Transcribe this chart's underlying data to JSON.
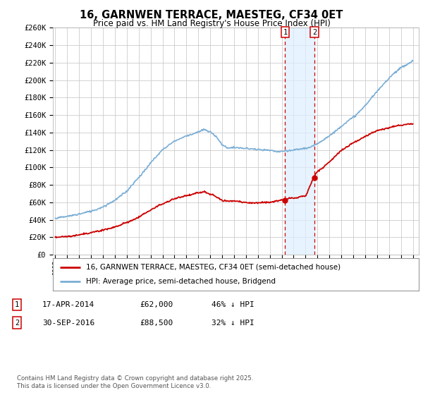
{
  "title": "16, GARNWEN TERRACE, MAESTEG, CF34 0ET",
  "subtitle": "Price paid vs. HM Land Registry's House Price Index (HPI)",
  "legend_line1": "16, GARNWEN TERRACE, MAESTEG, CF34 0ET (semi-detached house)",
  "legend_line2": "HPI: Average price, semi-detached house, Bridgend",
  "footer": "Contains HM Land Registry data © Crown copyright and database right 2025.\nThis data is licensed under the Open Government Licence v3.0.",
  "transaction1_date": "17-APR-2014",
  "transaction1_price": "£62,000",
  "transaction1_hpi": "46% ↓ HPI",
  "transaction2_date": "30-SEP-2016",
  "transaction2_price": "£88,500",
  "transaction2_hpi": "32% ↓ HPI",
  "transaction1_year": 2014.29,
  "transaction2_year": 2016.75,
  "transaction1_price_val": 62000,
  "transaction2_price_val": 88500,
  "ylim": [
    0,
    260000
  ],
  "xlim": [
    1994.8,
    2025.5
  ],
  "red_color": "#cc0000",
  "blue_color": "#7aaed6",
  "background_color": "#ffffff",
  "grid_color": "#cccccc",
  "shade_color": "#ddeeff",
  "hpi_kx": [
    1995,
    1996,
    1997,
    1998,
    1999,
    2000,
    2001,
    2002,
    2003,
    2004,
    2005,
    2006,
    2007,
    2007.5,
    2008,
    2008.5,
    2009,
    2009.5,
    2010,
    2011,
    2012,
    2013,
    2013.5,
    2014,
    2014.5,
    2015,
    2015.5,
    2016,
    2016.5,
    2017,
    2017.5,
    2018,
    2018.5,
    2019,
    2019.5,
    2020,
    2020.5,
    2021,
    2021.5,
    2022,
    2022.5,
    2023,
    2023.5,
    2024,
    2024.5,
    2025
  ],
  "hpi_ky": [
    42000,
    44000,
    47000,
    50000,
    55000,
    62000,
    72000,
    88000,
    105000,
    120000,
    130000,
    136000,
    140000,
    143000,
    140000,
    135000,
    125000,
    122000,
    122000,
    121000,
    120000,
    119000,
    118000,
    118000,
    119000,
    120000,
    121000,
    122000,
    124000,
    128000,
    132000,
    137000,
    142000,
    148000,
    153000,
    158000,
    164000,
    172000,
    180000,
    188000,
    196000,
    204000,
    210000,
    215000,
    218000,
    222000
  ],
  "red_kx": [
    1995,
    1996,
    1997,
    1998,
    1999,
    2000,
    2001,
    2002,
    2003,
    2004,
    2005,
    2006,
    2006.5,
    2007,
    2007.5,
    2008,
    2009,
    2010,
    2011,
    2012,
    2013,
    2013.5,
    2014.0,
    2014.29,
    2014.7,
    2015,
    2015.5,
    2016,
    2016.75,
    2017,
    2017.5,
    2018,
    2018.5,
    2019,
    2019.5,
    2020,
    2020.5,
    2021,
    2021.5,
    2022,
    2022.5,
    2023,
    2023.5,
    2024,
    2024.5,
    2025
  ],
  "red_ky": [
    20000,
    21000,
    22000,
    24000,
    27000,
    31000,
    36000,
    42000,
    50000,
    58000,
    64000,
    67000,
    68000,
    70000,
    71000,
    68000,
    60000,
    59000,
    58000,
    58000,
    59000,
    60000,
    61000,
    62000,
    63000,
    63500,
    64000,
    65000,
    88500,
    93000,
    98000,
    105000,
    112000,
    118000,
    122000,
    126000,
    130000,
    134000,
    138000,
    141000,
    143000,
    145000,
    147000,
    148000,
    149000,
    150000
  ]
}
